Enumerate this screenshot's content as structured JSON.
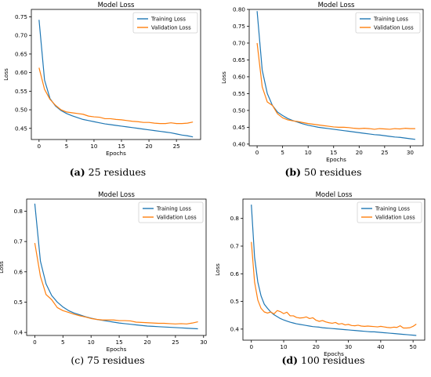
{
  "legend": {
    "training": "Training Loss",
    "validation": "Validation Loss"
  },
  "colors": {
    "training": "#1f77b4",
    "validation": "#ff7f0e",
    "axis": "#000000"
  },
  "panels": [
    {
      "caption_letter": "(a)",
      "caption_text": " 25 residues",
      "letter_bold": true,
      "chart_data": {
        "type": "line",
        "title": "Model Loss",
        "xlabel": "Epochs",
        "ylabel": "Loss",
        "xlim": [
          -1.4,
          29.4
        ],
        "ylim": [
          0.42,
          0.77
        ],
        "xticks": [
          0,
          5,
          10,
          15,
          20,
          25
        ],
        "yticks": [
          0.45,
          0.5,
          0.55,
          0.6,
          0.65,
          0.7,
          0.75
        ],
        "ytick_labels": [
          "0.45",
          "0.50",
          "0.55",
          "0.60",
          "0.65",
          "0.70",
          "0.75"
        ],
        "legend_position": "top-right",
        "series": [
          {
            "name": "Training Loss",
            "x": [
              0,
              1,
              2,
              3,
              4,
              5,
              6,
              7,
              8,
              9,
              10,
              11,
              12,
              13,
              14,
              15,
              16,
              17,
              18,
              19,
              20,
              21,
              22,
              23,
              24,
              25,
              26,
              27,
              28
            ],
            "values": [
              0.742,
              0.58,
              0.53,
              0.51,
              0.498,
              0.49,
              0.484,
              0.479,
              0.474,
              0.471,
              0.468,
              0.465,
              0.462,
              0.46,
              0.458,
              0.456,
              0.454,
              0.452,
              0.45,
              0.448,
              0.446,
              0.444,
              0.442,
              0.44,
              0.438,
              0.435,
              0.432,
              0.43,
              0.427
            ]
          },
          {
            "name": "Validation Loss",
            "x": [
              0,
              1,
              2,
              3,
              4,
              5,
              6,
              7,
              8,
              9,
              10,
              11,
              12,
              13,
              14,
              15,
              16,
              17,
              18,
              19,
              20,
              21,
              22,
              23,
              24,
              25,
              26,
              27,
              28
            ],
            "values": [
              0.613,
              0.555,
              0.528,
              0.512,
              0.5,
              0.494,
              0.492,
              0.49,
              0.488,
              0.483,
              0.481,
              0.48,
              0.476,
              0.476,
              0.474,
              0.473,
              0.471,
              0.469,
              0.468,
              0.466,
              0.466,
              0.464,
              0.463,
              0.463,
              0.465,
              0.463,
              0.463,
              0.464,
              0.467
            ]
          }
        ]
      }
    },
    {
      "caption_letter": "(b)",
      "caption_text": " 50 residues",
      "letter_bold": true,
      "chart_data": {
        "type": "line",
        "title": "Model Loss",
        "xlabel": "Epochs",
        "ylabel": "Loss",
        "xlim": [
          -1.55,
          32.55
        ],
        "ylim": [
          0.395,
          0.8
        ],
        "xticks": [
          0,
          5,
          10,
          15,
          20,
          25,
          30
        ],
        "yticks": [
          0.4,
          0.45,
          0.5,
          0.55,
          0.6,
          0.65,
          0.7,
          0.75,
          0.8
        ],
        "ytick_labels": [
          "0.40",
          "0.45",
          "0.50",
          "0.55",
          "0.60",
          "0.65",
          "0.70",
          "0.75",
          "0.80"
        ],
        "legend_position": "top-right",
        "series": [
          {
            "name": "Training Loss",
            "x": [
              0,
              1,
              2,
              3,
              4,
              5,
              6,
              7,
              8,
              9,
              10,
              11,
              12,
              13,
              14,
              15,
              16,
              17,
              18,
              19,
              20,
              21,
              22,
              23,
              24,
              25,
              26,
              27,
              28,
              29,
              30,
              31
            ],
            "values": [
              0.795,
              0.62,
              0.55,
              0.515,
              0.495,
              0.485,
              0.476,
              0.47,
              0.465,
              0.46,
              0.456,
              0.453,
              0.45,
              0.448,
              0.446,
              0.444,
              0.442,
              0.44,
              0.438,
              0.436,
              0.434,
              0.432,
              0.43,
              0.428,
              0.427,
              0.425,
              0.423,
              0.421,
              0.42,
              0.418,
              0.416,
              0.414
            ]
          },
          {
            "name": "Validation Loss",
            "x": [
              0,
              1,
              2,
              3,
              4,
              5,
              6,
              7,
              8,
              9,
              10,
              11,
              12,
              13,
              14,
              15,
              16,
              17,
              18,
              19,
              20,
              21,
              22,
              23,
              24,
              25,
              26,
              27,
              28,
              29,
              30,
              31
            ],
            "values": [
              0.7,
              0.57,
              0.525,
              0.515,
              0.49,
              0.478,
              0.472,
              0.469,
              0.467,
              0.464,
              0.461,
              0.459,
              0.457,
              0.455,
              0.453,
              0.451,
              0.45,
              0.45,
              0.449,
              0.447,
              0.446,
              0.447,
              0.446,
              0.444,
              0.446,
              0.445,
              0.444,
              0.446,
              0.445,
              0.447,
              0.446,
              0.446
            ]
          }
        ]
      }
    },
    {
      "caption_letter": "(c)",
      "caption_text": " 75 residues",
      "letter_bold": false,
      "chart_data": {
        "type": "line",
        "title": "Model Loss",
        "xlabel": "Epochs",
        "ylabel": "Loss",
        "xlim": [
          -1.45,
          30.45
        ],
        "ylim": [
          0.39,
          0.84
        ],
        "xticks": [
          0,
          5,
          10,
          15,
          20,
          25,
          30
        ],
        "yticks": [
          0.4,
          0.5,
          0.6,
          0.7,
          0.8
        ],
        "ytick_labels": [
          "0.4",
          "0.5",
          "0.6",
          "0.7",
          "0.8"
        ],
        "legend_position": "top-right",
        "series": [
          {
            "name": "Training Loss",
            "x": [
              0,
              1,
              2,
              3,
              4,
              5,
              6,
              7,
              8,
              9,
              10,
              11,
              12,
              13,
              14,
              15,
              16,
              17,
              18,
              19,
              20,
              21,
              22,
              23,
              24,
              25,
              26,
              27,
              28,
              29
            ],
            "values": [
              0.825,
              0.635,
              0.56,
              0.522,
              0.5,
              0.484,
              0.472,
              0.464,
              0.458,
              0.452,
              0.447,
              0.443,
              0.44,
              0.437,
              0.434,
              0.431,
              0.429,
              0.427,
              0.425,
              0.423,
              0.421,
              0.42,
              0.419,
              0.418,
              0.417,
              0.416,
              0.415,
              0.414,
              0.413,
              0.412
            ]
          },
          {
            "name": "Validation Loss",
            "x": [
              0,
              1,
              2,
              3,
              4,
              5,
              6,
              7,
              8,
              9,
              10,
              11,
              12,
              13,
              14,
              15,
              16,
              17,
              18,
              19,
              20,
              21,
              22,
              23,
              24,
              25,
              26,
              27,
              28,
              29
            ],
            "values": [
              0.695,
              0.585,
              0.525,
              0.508,
              0.482,
              0.472,
              0.466,
              0.46,
              0.455,
              0.451,
              0.446,
              0.443,
              0.441,
              0.441,
              0.441,
              0.439,
              0.439,
              0.438,
              0.434,
              0.433,
              0.432,
              0.431,
              0.43,
              0.43,
              0.429,
              0.428,
              0.429,
              0.428,
              0.431,
              0.435
            ]
          }
        ]
      }
    },
    {
      "caption_letter": "(d)",
      "caption_text": " 100 residues",
      "letter_bold": true,
      "chart_data": {
        "type": "line",
        "title": "Model Loss",
        "xlabel": "Epochs",
        "ylabel": "Loss",
        "xlim": [
          -2.6,
          53.6
        ],
        "ylim": [
          0.36,
          0.87
        ],
        "xticks": [
          0,
          10,
          20,
          30,
          40,
          50
        ],
        "yticks": [
          0.4,
          0.5,
          0.6,
          0.7,
          0.8
        ],
        "ytick_labels": [
          "0.4",
          "0.5",
          "0.6",
          "0.7",
          "0.8"
        ],
        "legend_position": "top-right",
        "series": [
          {
            "name": "Training Loss",
            "x": [
              0,
              1,
              2,
              3,
              4,
              5,
              6,
              7,
              8,
              9,
              10,
              11,
              12,
              13,
              14,
              15,
              16,
              17,
              18,
              19,
              20,
              21,
              22,
              23,
              24,
              25,
              26,
              27,
              28,
              29,
              30,
              31,
              32,
              33,
              34,
              35,
              36,
              37,
              38,
              39,
              40,
              41,
              42,
              43,
              44,
              45,
              46,
              47,
              48,
              49,
              50,
              51
            ],
            "values": [
              0.85,
              0.66,
              0.57,
              0.52,
              0.49,
              0.475,
              0.462,
              0.452,
              0.445,
              0.438,
              0.433,
              0.429,
              0.425,
              0.422,
              0.419,
              0.417,
              0.415,
              0.413,
              0.411,
              0.409,
              0.408,
              0.407,
              0.405,
              0.404,
              0.403,
              0.402,
              0.401,
              0.4,
              0.399,
              0.398,
              0.397,
              0.396,
              0.395,
              0.394,
              0.393,
              0.392,
              0.391,
              0.39,
              0.39,
              0.389,
              0.388,
              0.387,
              0.386,
              0.385,
              0.384,
              0.383,
              0.382,
              0.381,
              0.38,
              0.379,
              0.378,
              0.377
            ]
          },
          {
            "name": "Validation Loss",
            "x": [
              0,
              1,
              2,
              3,
              4,
              5,
              6,
              7,
              8,
              9,
              10,
              11,
              12,
              13,
              14,
              15,
              16,
              17,
              18,
              19,
              20,
              21,
              22,
              23,
              24,
              25,
              26,
              27,
              28,
              29,
              30,
              31,
              32,
              33,
              34,
              35,
              36,
              37,
              38,
              39,
              40,
              41,
              42,
              43,
              44,
              45,
              46,
              47,
              48,
              49,
              50,
              51
            ],
            "values": [
              0.715,
              0.57,
              0.505,
              0.475,
              0.462,
              0.458,
              0.462,
              0.455,
              0.467,
              0.463,
              0.456,
              0.461,
              0.448,
              0.448,
              0.442,
              0.44,
              0.441,
              0.444,
              0.438,
              0.441,
              0.432,
              0.428,
              0.431,
              0.426,
              0.423,
              0.421,
              0.424,
              0.418,
              0.42,
              0.415,
              0.417,
              0.413,
              0.412,
              0.414,
              0.411,
              0.41,
              0.411,
              0.41,
              0.409,
              0.408,
              0.41,
              0.408,
              0.406,
              0.405,
              0.407,
              0.406,
              0.412,
              0.404,
              0.404,
              0.405,
              0.41,
              0.418
            ]
          }
        ]
      }
    }
  ]
}
